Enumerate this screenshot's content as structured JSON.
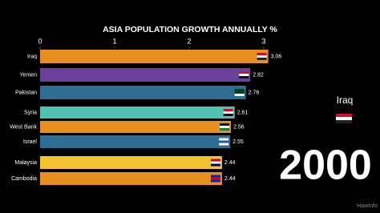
{
  "chart_data": {
    "type": "bar",
    "orientation": "horizontal",
    "title": "ASIA POPULATION GROWTH ANNUALLY %",
    "categories": [
      "Iraq",
      "Yemen",
      "Pakistan",
      "Syria",
      "West Bank",
      "Israel",
      "Malaysia",
      "Cambodia"
    ],
    "values": [
      3.06,
      2.82,
      2.76,
      2.61,
      2.56,
      2.55,
      2.44,
      2.44
    ],
    "colors": [
      "#e8901f",
      "#6b3f9c",
      "#2e6e93",
      "#4fc2b2",
      "#e8901f",
      "#2e6e93",
      "#f4c22f",
      "#e8901f"
    ],
    "xlim": [
      0,
      3
    ],
    "xticks": [
      0,
      1,
      2,
      3
    ],
    "current_label": "Iraq",
    "year": "2000",
    "watermark": "HawInfo"
  }
}
